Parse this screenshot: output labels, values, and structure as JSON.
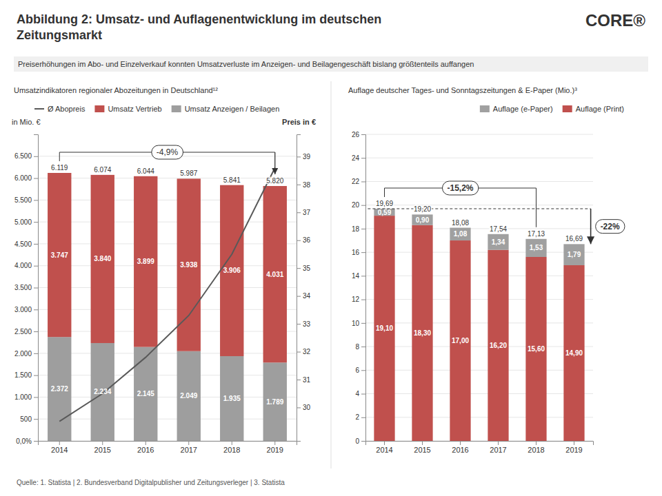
{
  "title": "Abbildung 2: Umsatz- und Auflagenentwicklung im deutschen\nZeitungsmarkt",
  "subtitle": "Preiserhöhungen im Abo- und Einzelverkauf konnten Umsatzverluste im Anzeigen- und Beilagengeschäft bislang größtenteils auffangen",
  "annotations": [
    "Quelle: 1. Statista | 2. Bundesverband  Digitalpublisher und Zeitungsverleger | 3. Statista",
    "CORE®"
  ],
  "chart_data": [
    {
      "type": "bar",
      "title": "Umsatzindikatoren regionaler Abozeitungen  in Deutschland¹²",
      "categories": [
        "2014",
        "2015",
        "2016",
        "2017",
        "2018",
        "2019"
      ],
      "series": [
        {
          "name": "Umsatz Anzeigen / Beilagen",
          "type": "bar",
          "color": "#9e9e9e",
          "values": [
            2372,
            2234,
            2145,
            2049,
            1935,
            1789
          ],
          "value_labels": [
            "2.372",
            "2.234",
            "2.145",
            "2.049",
            "1.935",
            "1.789"
          ],
          "data_labels": true
        },
        {
          "name": "Umsatz Vertrieb",
          "type": "bar",
          "color": "#c0504d",
          "values": [
            3747,
            3840,
            3899,
            3938,
            3906,
            4031
          ],
          "value_labels": [
            "3.747",
            "3.840",
            "3.899",
            "3.938",
            "3.906",
            "4.031"
          ],
          "data_labels": true
        },
        {
          "name": "Ø Abopreis",
          "type": "line",
          "color": "#595959",
          "axis": "y2",
          "values": [
            29.5,
            30.5,
            31.8,
            33.3,
            35.5,
            38.6
          ]
        }
      ],
      "totals": {
        "values": [
          6119,
          6074,
          6044,
          5987,
          5841,
          5820
        ],
        "value_labels": [
          "6.119",
          "6.074",
          "6.044",
          "5.987",
          "5.841",
          "5.820"
        ]
      },
      "stacked": true,
      "ylabel": "in Mio. €",
      "y2label": "Preis in €",
      "ylim": [
        0,
        7000
      ],
      "yticks": [
        {
          "value": 0,
          "label": "0,0%"
        },
        500,
        {
          "value": 1000,
          "label": "1.000"
        },
        {
          "value": 1500,
          "label": "1.500"
        },
        {
          "value": 2000,
          "label": "2.000"
        },
        {
          "value": 2500,
          "label": "2.500"
        },
        {
          "value": 3000,
          "label": "3.000"
        },
        {
          "value": 3500,
          "label": "3.500"
        },
        {
          "value": 4000,
          "label": "4.000"
        },
        {
          "value": 4500,
          "label": "4.500"
        },
        {
          "value": 5000,
          "label": "5.000"
        },
        {
          "value": 5500,
          "label": "5.500"
        },
        {
          "value": 6000,
          "label": "6.000"
        },
        {
          "value": 6500,
          "label": "6.500"
        }
      ],
      "y2lim": [
        28.8,
        39.8
      ],
      "y2ticks": [
        30,
        31,
        32,
        33,
        34,
        35,
        36,
        37,
        38,
        39
      ],
      "grid": true,
      "legend": "upper left",
      "annotations": [
        "-4,9%"
      ]
    },
    {
      "type": "bar",
      "title": "Auflage deutscher Tages- und Sonntagszeitungen & E-Paper (Mio.)³",
      "categories": [
        "2014",
        "2015",
        "2016",
        "2017",
        "2018",
        "2019"
      ],
      "series": [
        {
          "name": "Auflage (Print)",
          "type": "bar",
          "color": "#c0504d",
          "values": [
            19.1,
            18.3,
            17.0,
            16.2,
            15.6,
            14.9
          ],
          "value_labels": [
            "19,10",
            "18,30",
            "17,00",
            "16,20",
            "15,60",
            "14,90"
          ],
          "data_labels": true
        },
        {
          "name": "Auflage (e-Paper)",
          "type": "bar",
          "color": "#a0a0a0",
          "values": [
            0.59,
            0.9,
            1.08,
            1.34,
            1.53,
            1.79
          ],
          "value_labels": [
            "0,59",
            "0,90",
            "1,08",
            "1,34",
            "1,53",
            "1,79"
          ],
          "data_labels": true
        }
      ],
      "totals": {
        "values": [
          19.69,
          19.2,
          18.08,
          17.54,
          17.13,
          16.69
        ],
        "value_labels": [
          "19,69",
          "19,20",
          "18,08",
          "17,54",
          "17,13",
          "16,69"
        ]
      },
      "stacked": true,
      "ylim": [
        0,
        26
      ],
      "yticks": [
        0,
        2,
        4,
        6,
        8,
        10,
        12,
        14,
        16,
        18,
        20,
        22,
        24,
        26
      ],
      "grid": true,
      "legend": "upper right",
      "annotations": [
        "-15,2%",
        "-22%"
      ]
    }
  ]
}
